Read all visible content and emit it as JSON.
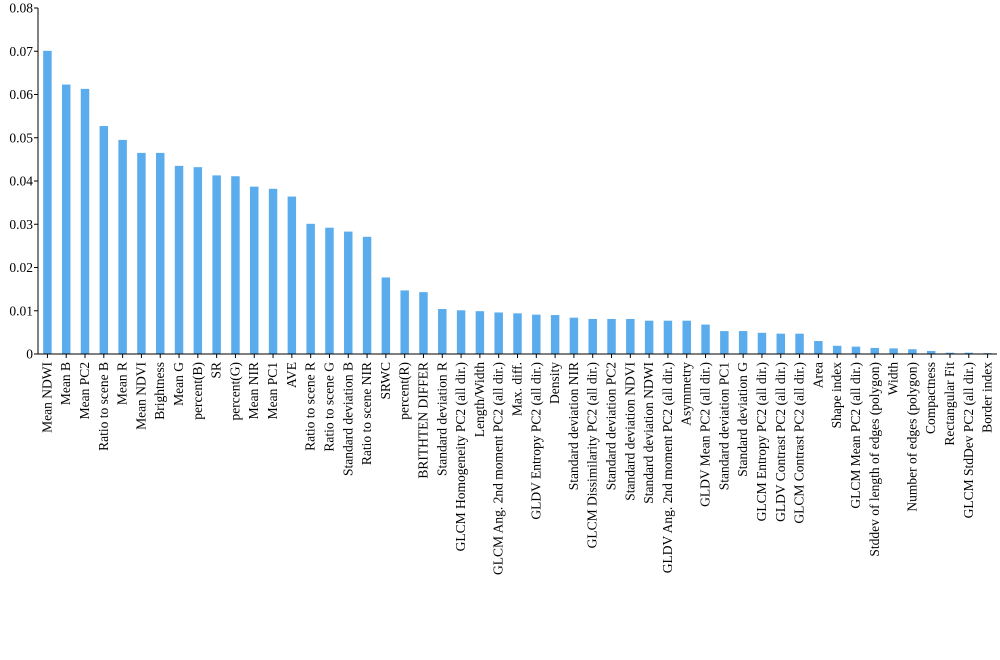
{
  "chart_data": {
    "type": "bar",
    "title": "",
    "xlabel": "",
    "ylabel": "",
    "ylim": [
      0,
      0.08
    ],
    "yticks": [
      0,
      0.01,
      0.02,
      0.03,
      0.04,
      0.05,
      0.06,
      0.07,
      0.08
    ],
    "ytick_labels": [
      "0",
      "0.01",
      "0.02",
      "0.03",
      "0.04",
      "0.05",
      "0.06",
      "0.07",
      "0.08"
    ],
    "grid": false,
    "bar_color": "#5aacec",
    "categories": [
      "Mean NDWI",
      "Mean B",
      "Mean PC2",
      "Ratio to scene B",
      "Mean R",
      "Mean NDVI",
      "Brightness",
      "Mean G",
      "percent(B)",
      "SR",
      "percent(G)",
      "Mean NIR",
      "Mean PC1",
      "AVE",
      "Ratio to scene R",
      "Ratio to scene G",
      "Standard deviation B",
      "Ratio to scene NIR",
      "SRWC",
      "percent(R)",
      "BRITHTEN DIFFER",
      "Standard deviation R",
      "GLCM Homogeneity PC2 (all dir.)",
      "Length/Width",
      "GLCM Ang. 2nd moment PC2 (all dir.)",
      "Max. diff.",
      "GLDV Entropy PC2 (all dir.)",
      "Density",
      "Standard deviation NIR",
      "GLCM Dissimilarity PC2 (all dir.)",
      "Standard deviation PC2",
      "Standard deviation NDVI",
      "Standard deviation NDWI",
      "GLDV Ang. 2nd moment PC2 (all dir.)",
      "Asymmetry",
      "GLDV Mean PC2 (all dir.)",
      "Standard deviation PC1",
      "Standard deviation G",
      "GLCM Entropy PC2 (all dir.)",
      "GLDV Contrast PC2 (all dir.)",
      "GLCM Contrast PC2 (all dir.)",
      "Area",
      "Shape index",
      "GLCM Mean PC2 (all dir.)",
      "Stddev of length of edges (polygon)",
      "Width",
      "Number of edges (polygon)",
      "Compactness",
      "Rectangular Fit",
      "GLCM StdDev PC2 (all dir.)",
      "Border index"
    ],
    "values": [
      0.0701,
      0.0623,
      0.0613,
      0.0527,
      0.0495,
      0.0465,
      0.0465,
      0.0435,
      0.0432,
      0.0413,
      0.0411,
      0.0387,
      0.0382,
      0.0364,
      0.0301,
      0.0292,
      0.0283,
      0.0271,
      0.0177,
      0.0147,
      0.0143,
      0.0104,
      0.0101,
      0.0099,
      0.0096,
      0.0094,
      0.0091,
      0.009,
      0.0084,
      0.0081,
      0.0081,
      0.0081,
      0.0077,
      0.0077,
      0.0077,
      0.0068,
      0.0053,
      0.0053,
      0.0049,
      0.0047,
      0.0047,
      0.003,
      0.0019,
      0.0017,
      0.0014,
      0.0013,
      0.0011,
      0.0007,
      0.0003,
      0.0003,
      0.0002
    ]
  }
}
